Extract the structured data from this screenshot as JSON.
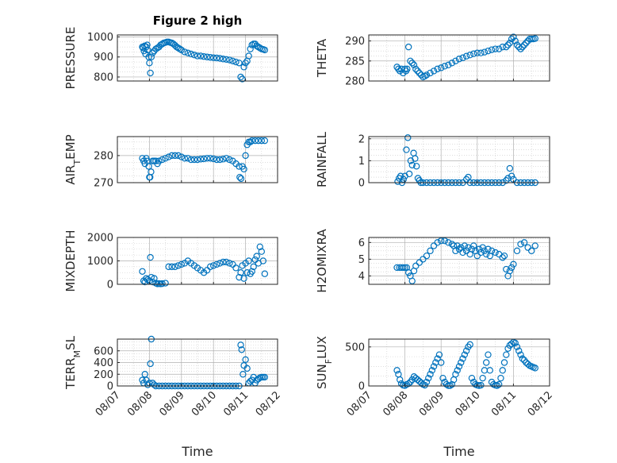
{
  "figure": {
    "title": "Figure 2 high",
    "marker_color": "#0072BD"
  },
  "chart_data": [
    {
      "type": "scatter",
      "ylabel": "PRESSURE",
      "title": "Figure 2 high",
      "xlim": [
        0,
        5
      ],
      "xticks": [
        "08/07",
        "08/08",
        "08/09",
        "08/10",
        "08/11",
        "08/12"
      ],
      "show_xlabels": false,
      "ylim": [
        780,
        1010
      ],
      "yticks": [
        800,
        900,
        1000
      ],
      "grid": true,
      "x": [
        0.78,
        0.8,
        0.83,
        0.85,
        0.88,
        0.9,
        0.93,
        0.95,
        0.98,
        1.0,
        1.03,
        1.06,
        1.1,
        1.15,
        1.2,
        1.25,
        1.3,
        1.35,
        1.4,
        1.45,
        1.5,
        1.55,
        1.6,
        1.65,
        1.7,
        1.75,
        1.8,
        1.85,
        1.9,
        1.95,
        2.0,
        2.1,
        2.2,
        2.3,
        2.4,
        2.5,
        2.6,
        2.7,
        2.8,
        2.9,
        3.0,
        3.1,
        3.2,
        3.3,
        3.4,
        3.5,
        3.6,
        3.7,
        3.8,
        3.85,
        3.9,
        3.95,
        4.0,
        4.05,
        4.1,
        4.15,
        4.2,
        4.25,
        4.3,
        4.35,
        4.4,
        4.45,
        4.5,
        4.55,
        4.6
      ],
      "y": [
        950,
        945,
        930,
        955,
        915,
        950,
        960,
        935,
        900,
        870,
        820,
        900,
        920,
        930,
        940,
        945,
        950,
        960,
        965,
        970,
        972,
        975,
        975,
        972,
        970,
        965,
        958,
        950,
        945,
        940,
        935,
        925,
        920,
        915,
        910,
        905,
        905,
        902,
        900,
        898,
        896,
        895,
        893,
        890,
        888,
        885,
        880,
        875,
        870,
        800,
        790,
        850,
        870,
        880,
        905,
        940,
        960,
        965,
        965,
        955,
        950,
        945,
        940,
        938,
        935
      ]
    },
    {
      "type": "scatter",
      "ylabel": "THETA",
      "xlim": [
        0,
        5
      ],
      "xticks": [
        "08/07",
        "08/08",
        "08/09",
        "08/10",
        "08/11",
        "08/12"
      ],
      "show_xlabels": false,
      "ylim": [
        280,
        291.5
      ],
      "yticks": [
        280,
        285,
        290
      ],
      "grid": true,
      "x": [
        0.78,
        0.82,
        0.86,
        0.9,
        0.95,
        1.0,
        1.03,
        1.06,
        1.1,
        1.15,
        1.2,
        1.25,
        1.3,
        1.35,
        1.4,
        1.45,
        1.5,
        1.55,
        1.6,
        1.7,
        1.8,
        1.9,
        2.0,
        2.1,
        2.2,
        2.3,
        2.4,
        2.5,
        2.6,
        2.7,
        2.8,
        2.9,
        3.0,
        3.1,
        3.2,
        3.3,
        3.4,
        3.5,
        3.6,
        3.7,
        3.8,
        3.85,
        3.9,
        3.95,
        4.0,
        4.05,
        4.1,
        4.15,
        4.2,
        4.25,
        4.3,
        4.35,
        4.4,
        4.45,
        4.5,
        4.55,
        4.6
      ],
      "y": [
        283.5,
        283,
        282.5,
        283,
        282,
        283,
        282.5,
        283,
        288.5,
        285,
        284.5,
        284,
        283,
        282.5,
        282,
        281.5,
        281,
        281.2,
        281.5,
        282,
        282.5,
        283,
        283.3,
        283.7,
        284,
        284.5,
        285,
        285.5,
        285.8,
        286.2,
        286.5,
        286.8,
        287,
        287,
        287.2,
        287.5,
        287.8,
        288,
        288,
        288.5,
        288.5,
        289,
        289.5,
        290.5,
        291,
        290,
        289,
        288.5,
        288,
        288.5,
        289,
        289.5,
        290,
        290.5,
        290.5,
        290.5,
        290.6
      ]
    },
    {
      "type": "scatter",
      "ylabel": "AIR_TEMP",
      "xlim": [
        0,
        5
      ],
      "xticks": [
        "08/07",
        "08/08",
        "08/09",
        "08/10",
        "08/11",
        "08/12"
      ],
      "show_xlabels": false,
      "ylim": [
        270,
        287
      ],
      "yticks": [
        270,
        280
      ],
      "grid": true,
      "x": [
        0.78,
        0.82,
        0.86,
        0.9,
        0.94,
        0.98,
        1.0,
        1.02,
        1.05,
        1.1,
        1.15,
        1.2,
        1.25,
        1.3,
        1.4,
        1.5,
        1.6,
        1.7,
        1.8,
        1.9,
        2.0,
        2.1,
        2.2,
        2.3,
        2.4,
        2.5,
        2.6,
        2.7,
        2.8,
        2.9,
        3.0,
        3.1,
        3.2,
        3.3,
        3.4,
        3.5,
        3.6,
        3.7,
        3.8,
        3.82,
        3.86,
        3.9,
        3.95,
        4.0,
        4.05,
        4.1,
        4.15,
        4.2,
        4.3,
        4.4,
        4.5,
        4.6
      ],
      "y": [
        279,
        278,
        277,
        279,
        278,
        276,
        272,
        272,
        274,
        278,
        278,
        278,
        277,
        278,
        278.5,
        279,
        279.5,
        280,
        280,
        280,
        279.5,
        279,
        279,
        278.5,
        278.5,
        278.5,
        278.7,
        278.8,
        279,
        279,
        278.8,
        278.5,
        278.5,
        278.7,
        279,
        278.5,
        278,
        277,
        276,
        272,
        271.5,
        276,
        275,
        280,
        284,
        285,
        285,
        285.5,
        285.5,
        285.5,
        285.5,
        285.5
      ]
    },
    {
      "type": "scatter",
      "ylabel": "RAINFALL",
      "xlim": [
        0,
        5
      ],
      "xticks": [
        "08/07",
        "08/08",
        "08/09",
        "08/10",
        "08/11",
        "08/12"
      ],
      "show_xlabels": false,
      "ylim": [
        0,
        2.1
      ],
      "yticks": [
        0,
        1,
        2
      ],
      "grid": true,
      "x": [
        0.8,
        0.84,
        0.88,
        0.92,
        0.96,
        1.0,
        1.04,
        1.08,
        1.12,
        1.16,
        1.2,
        1.24,
        1.28,
        1.32,
        1.36,
        1.4,
        1.44,
        1.5,
        1.6,
        1.7,
        1.8,
        1.9,
        2.0,
        2.1,
        2.2,
        2.3,
        2.4,
        2.5,
        2.6,
        2.7,
        2.75,
        2.8,
        2.9,
        3.0,
        3.1,
        3.2,
        3.3,
        3.4,
        3.5,
        3.6,
        3.7,
        3.8,
        3.85,
        3.9,
        3.95,
        4.0,
        4.1,
        4.2,
        4.3,
        4.4,
        4.5,
        4.6
      ],
      "y": [
        0.05,
        0.2,
        0.3,
        0,
        0.15,
        0.3,
        1.5,
        2.05,
        0.4,
        1.0,
        0.8,
        1.35,
        1.1,
        0.75,
        0.2,
        0.1,
        0,
        0,
        0,
        0,
        0,
        0,
        0,
        0,
        0,
        0,
        0,
        0,
        0,
        0.15,
        0.25,
        0,
        0,
        0,
        0,
        0,
        0,
        0,
        0,
        0,
        0,
        0.1,
        0.2,
        0.65,
        0.3,
        0.15,
        0,
        0,
        0,
        0,
        0,
        0
      ]
    },
    {
      "type": "scatter",
      "ylabel": "MIXDEPTH",
      "xlim": [
        0,
        5
      ],
      "xticks": [
        "08/07",
        "08/08",
        "08/09",
        "08/10",
        "08/11",
        "08/12"
      ],
      "show_xlabels": false,
      "ylim": [
        0,
        2000
      ],
      "yticks": [
        0,
        1000,
        2000
      ],
      "grid": true,
      "x": [
        0.78,
        0.82,
        0.86,
        0.9,
        0.95,
        1.0,
        1.03,
        1.06,
        1.1,
        1.15,
        1.2,
        1.25,
        1.3,
        1.35,
        1.4,
        1.5,
        1.6,
        1.7,
        1.8,
        1.9,
        2.0,
        2.1,
        2.2,
        2.3,
        2.4,
        2.5,
        2.6,
        2.7,
        2.8,
        2.9,
        3.0,
        3.1,
        3.2,
        3.3,
        3.4,
        3.5,
        3.6,
        3.7,
        3.8,
        3.85,
        3.9,
        3.95,
        4.0,
        4.05,
        4.1,
        4.15,
        4.2,
        4.25,
        4.3,
        4.35,
        4.4,
        4.45,
        4.5,
        4.55,
        4.6
      ],
      "y": [
        550,
        150,
        100,
        250,
        200,
        150,
        1150,
        300,
        100,
        250,
        50,
        20,
        30,
        20,
        30,
        50,
        750,
        750,
        750,
        800,
        850,
        900,
        1000,
        900,
        800,
        700,
        600,
        500,
        600,
        750,
        800,
        850,
        900,
        950,
        950,
        900,
        850,
        700,
        300,
        500,
        800,
        250,
        900,
        500,
        1000,
        450,
        550,
        750,
        1050,
        1200,
        900,
        1600,
        1400,
        1000,
        450
      ]
    },
    {
      "type": "scatter",
      "ylabel": "H2OMIXRA",
      "xlim": [
        0,
        5
      ],
      "xticks": [
        "08/07",
        "08/08",
        "08/09",
        "08/10",
        "08/11",
        "08/12"
      ],
      "show_xlabels": false,
      "ylim": [
        3.5,
        6.3
      ],
      "yticks": [
        4,
        5,
        6
      ],
      "grid": true,
      "x": [
        0.78,
        0.85,
        0.9,
        0.95,
        1.0,
        1.05,
        1.1,
        1.15,
        1.2,
        1.25,
        1.3,
        1.4,
        1.5,
        1.6,
        1.7,
        1.8,
        1.9,
        2.0,
        2.1,
        2.2,
        2.3,
        2.35,
        2.4,
        2.45,
        2.5,
        2.55,
        2.6,
        2.65,
        2.7,
        2.75,
        2.8,
        2.85,
        2.9,
        2.95,
        3.0,
        3.05,
        3.1,
        3.15,
        3.2,
        3.25,
        3.3,
        3.35,
        3.4,
        3.5,
        3.6,
        3.7,
        3.75,
        3.8,
        3.85,
        3.9,
        3.95,
        4.0,
        4.1,
        4.2,
        4.3,
        4.4,
        4.5,
        4.6
      ],
      "y": [
        4.5,
        4.5,
        4.5,
        4.5,
        4.5,
        4.5,
        4.2,
        4.0,
        3.7,
        4.3,
        4.6,
        4.8,
        5.0,
        5.2,
        5.5,
        5.8,
        6.0,
        6.1,
        6.1,
        6.0,
        5.9,
        5.8,
        5.5,
        5.8,
        5.6,
        5.7,
        5.4,
        5.8,
        5.5,
        5.7,
        5.3,
        5.6,
        5.8,
        5.5,
        5.2,
        5.6,
        5.4,
        5.7,
        5.5,
        5.3,
        5.6,
        5.2,
        5.5,
        5.4,
        5.3,
        5.1,
        5.2,
        4.4,
        4.0,
        4.3,
        4.5,
        4.7,
        5.5,
        5.9,
        6.0,
        5.7,
        5.5,
        5.8
      ]
    },
    {
      "type": "scatter",
      "ylabel": "TERR_MSL",
      "xlim": [
        0,
        5
      ],
      "xticks": [
        "08/07",
        "08/08",
        "08/09",
        "08/10",
        "08/11",
        "08/12"
      ],
      "show_xlabels": true,
      "xlabel": "Time",
      "ylim": [
        0,
        800
      ],
      "yticks": [
        0,
        200,
        400,
        600
      ],
      "grid": true,
      "x": [
        0.78,
        0.82,
        0.86,
        0.9,
        0.95,
        1.0,
        1.03,
        1.06,
        1.1,
        1.15,
        1.2,
        1.3,
        1.4,
        1.5,
        1.6,
        1.7,
        1.8,
        1.9,
        2.0,
        2.1,
        2.2,
        2.3,
        2.4,
        2.5,
        2.6,
        2.7,
        2.8,
        2.9,
        3.0,
        3.1,
        3.2,
        3.3,
        3.4,
        3.5,
        3.6,
        3.7,
        3.8,
        3.85,
        3.88,
        3.92,
        3.95,
        4.0,
        4.05,
        4.1,
        4.15,
        4.2,
        4.25,
        4.3,
        4.35,
        4.4,
        4.45,
        4.5,
        4.55,
        4.6
      ],
      "y": [
        100,
        50,
        200,
        100,
        20,
        50,
        380,
        800,
        50,
        20,
        0,
        0,
        0,
        0,
        0,
        0,
        0,
        0,
        0,
        0,
        0,
        0,
        0,
        0,
        0,
        0,
        0,
        0,
        0,
        0,
        0,
        0,
        0,
        0,
        0,
        0,
        0,
        700,
        620,
        200,
        350,
        450,
        300,
        50,
        80,
        100,
        150,
        50,
        100,
        120,
        140,
        150,
        150,
        150
      ]
    },
    {
      "type": "scatter",
      "ylabel": "SUN_FLUX",
      "xlim": [
        0,
        5
      ],
      "xticks": [
        "08/07",
        "08/08",
        "08/09",
        "08/10",
        "08/11",
        "08/12"
      ],
      "show_xlabels": true,
      "xlabel": "Time",
      "ylim": [
        0,
        600
      ],
      "yticks": [
        0,
        500
      ],
      "grid": true,
      "x": [
        0.78,
        0.82,
        0.86,
        0.9,
        0.95,
        1.0,
        1.05,
        1.1,
        1.15,
        1.2,
        1.25,
        1.3,
        1.35,
        1.4,
        1.45,
        1.5,
        1.55,
        1.6,
        1.65,
        1.7,
        1.75,
        1.8,
        1.85,
        1.9,
        1.95,
        2.0,
        2.05,
        2.1,
        2.15,
        2.2,
        2.25,
        2.3,
        2.35,
        2.4,
        2.45,
        2.5,
        2.55,
        2.6,
        2.65,
        2.7,
        2.75,
        2.8,
        2.85,
        2.9,
        2.95,
        3.0,
        3.05,
        3.1,
        3.15,
        3.2,
        3.25,
        3.3,
        3.35,
        3.4,
        3.45,
        3.5,
        3.55,
        3.6,
        3.65,
        3.7,
        3.75,
        3.8,
        3.85,
        3.9,
        3.95,
        4.0,
        4.05,
        4.1,
        4.15,
        4.2,
        4.25,
        4.3,
        4.35,
        4.4,
        4.45,
        4.5,
        4.55,
        4.6
      ],
      "y": [
        200,
        150,
        80,
        30,
        10,
        5,
        20,
        30,
        50,
        80,
        120,
        100,
        80,
        60,
        40,
        20,
        10,
        50,
        100,
        150,
        200,
        250,
        300,
        350,
        400,
        300,
        100,
        50,
        20,
        5,
        5,
        20,
        80,
        150,
        200,
        250,
        300,
        350,
        400,
        450,
        500,
        530,
        100,
        50,
        20,
        10,
        5,
        10,
        100,
        200,
        300,
        400,
        200,
        50,
        20,
        10,
        5,
        20,
        100,
        200,
        300,
        400,
        480,
        520,
        540,
        560,
        550,
        500,
        450,
        400,
        350,
        330,
        300,
        280,
        260,
        250,
        240,
        230
      ]
    }
  ]
}
